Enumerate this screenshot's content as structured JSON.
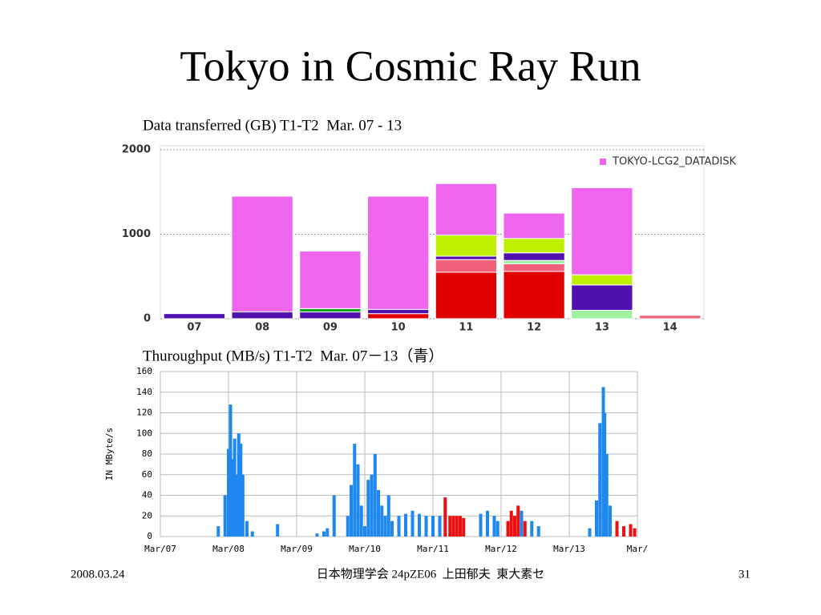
{
  "slide": {
    "title": "Tokyo in Cosmic Ray Run",
    "footer": {
      "date": "2008.03.24",
      "center": "日本物理学会 24pZE06  上田郁夫  東大素セ",
      "page": "31"
    }
  },
  "chart_data": [
    {
      "type": "bar",
      "stacked": true,
      "title": "Data transferred (GB) T1-T2  Mar. 07 - 13",
      "categories": [
        "07",
        "08",
        "09",
        "10",
        "11",
        "12",
        "13",
        "14"
      ],
      "series": [
        {
          "color": "#e00000",
          "values": [
            0,
            0,
            0,
            60,
            550,
            560,
            0,
            0
          ]
        },
        {
          "color": "#f0607a",
          "values": [
            0,
            0,
            0,
            0,
            150,
            90,
            0,
            40
          ]
        },
        {
          "color": "#a0f0a0",
          "values": [
            0,
            0,
            0,
            0,
            0,
            40,
            100,
            0
          ]
        },
        {
          "color": "#5010b0",
          "values": [
            60,
            80,
            80,
            50,
            40,
            90,
            300,
            0
          ]
        },
        {
          "color": "#c0f000",
          "values": [
            0,
            0,
            0,
            0,
            250,
            170,
            120,
            0
          ]
        },
        {
          "color": "#10a010",
          "values": [
            0,
            0,
            40,
            0,
            0,
            0,
            0,
            0
          ]
        },
        {
          "name": "TOKYO-LCG2_DATADISK",
          "color": "#ee66ee",
          "values": [
            0,
            1370,
            680,
            1340,
            610,
            300,
            1030,
            0
          ]
        }
      ],
      "ylim": [
        0,
        2000
      ],
      "yticks": [
        0,
        1000,
        2000
      ],
      "grid": true,
      "legend": "upper right"
    },
    {
      "type": "bar",
      "title": "Thuroughput (MB/s) T1-T2  Mar. 07－13（青）",
      "ylabel": "IN MByte/s",
      "x": [
        0.85,
        0.95,
        1.0,
        1.03,
        1.06,
        1.09,
        1.12,
        1.15,
        1.18,
        1.21,
        1.27,
        1.35,
        1.72,
        2.3,
        2.4,
        2.45,
        2.55,
        2.75,
        2.8,
        2.85,
        2.9,
        2.95,
        3.0,
        3.05,
        3.1,
        3.15,
        3.2,
        3.25,
        3.3,
        3.35,
        3.4,
        3.5,
        3.6,
        3.7,
        3.8,
        3.9,
        4.0,
        4.1,
        4.18,
        4.25,
        4.3,
        4.35,
        4.4,
        4.45,
        4.7,
        4.8,
        4.9,
        4.95,
        5.1,
        5.15,
        5.2,
        5.25,
        5.3,
        5.35,
        5.45,
        5.55,
        6.3,
        6.4,
        6.45,
        6.5,
        6.52,
        6.55,
        6.6,
        6.7,
        6.8,
        6.9,
        6.96
      ],
      "series": [
        {
          "color": "#1e88f0",
          "values": [
            10,
            40,
            85,
            128,
            75,
            95,
            60,
            100,
            90,
            60,
            15,
            5,
            12,
            3,
            5,
            8,
            40,
            20,
            50,
            90,
            70,
            30,
            10,
            55,
            60,
            80,
            45,
            30,
            20,
            40,
            15,
            20,
            22,
            25,
            22,
            20,
            20,
            20,
            null,
            null,
            null,
            null,
            null,
            null,
            22,
            25,
            20,
            15,
            null,
            null,
            null,
            null,
            25,
            null,
            15,
            10,
            8,
            35,
            110,
            145,
            120,
            80,
            30,
            null,
            null,
            null,
            null
          ]
        },
        {
          "color": "#ee1010",
          "values": [
            null,
            null,
            null,
            null,
            null,
            null,
            null,
            null,
            null,
            null,
            null,
            null,
            null,
            null,
            null,
            null,
            null,
            null,
            null,
            null,
            null,
            null,
            null,
            null,
            null,
            null,
            null,
            null,
            null,
            null,
            null,
            null,
            null,
            null,
            null,
            null,
            null,
            null,
            38,
            20,
            20,
            20,
            20,
            18,
            null,
            null,
            null,
            null,
            15,
            25,
            20,
            30,
            null,
            15,
            null,
            null,
            null,
            null,
            null,
            null,
            null,
            null,
            null,
            15,
            10,
            12,
            8
          ]
        }
      ],
      "xlim": [
        0,
        7
      ],
      "xticks": [
        {
          "value": 0,
          "label": "Mar/07"
        },
        {
          "value": 1,
          "label": "Mar/08"
        },
        {
          "value": 2,
          "label": "Mar/09"
        },
        {
          "value": 3,
          "label": "Mar/10"
        },
        {
          "value": 4,
          "label": "Mar/11"
        },
        {
          "value": 5,
          "label": "Mar/12"
        },
        {
          "value": 6,
          "label": "Mar/13"
        },
        {
          "value": 7,
          "label": "Mar/"
        }
      ],
      "ylim": [
        0,
        160
      ],
      "yticks": [
        0,
        20,
        40,
        60,
        80,
        100,
        120,
        140,
        160
      ],
      "grid": true
    }
  ]
}
